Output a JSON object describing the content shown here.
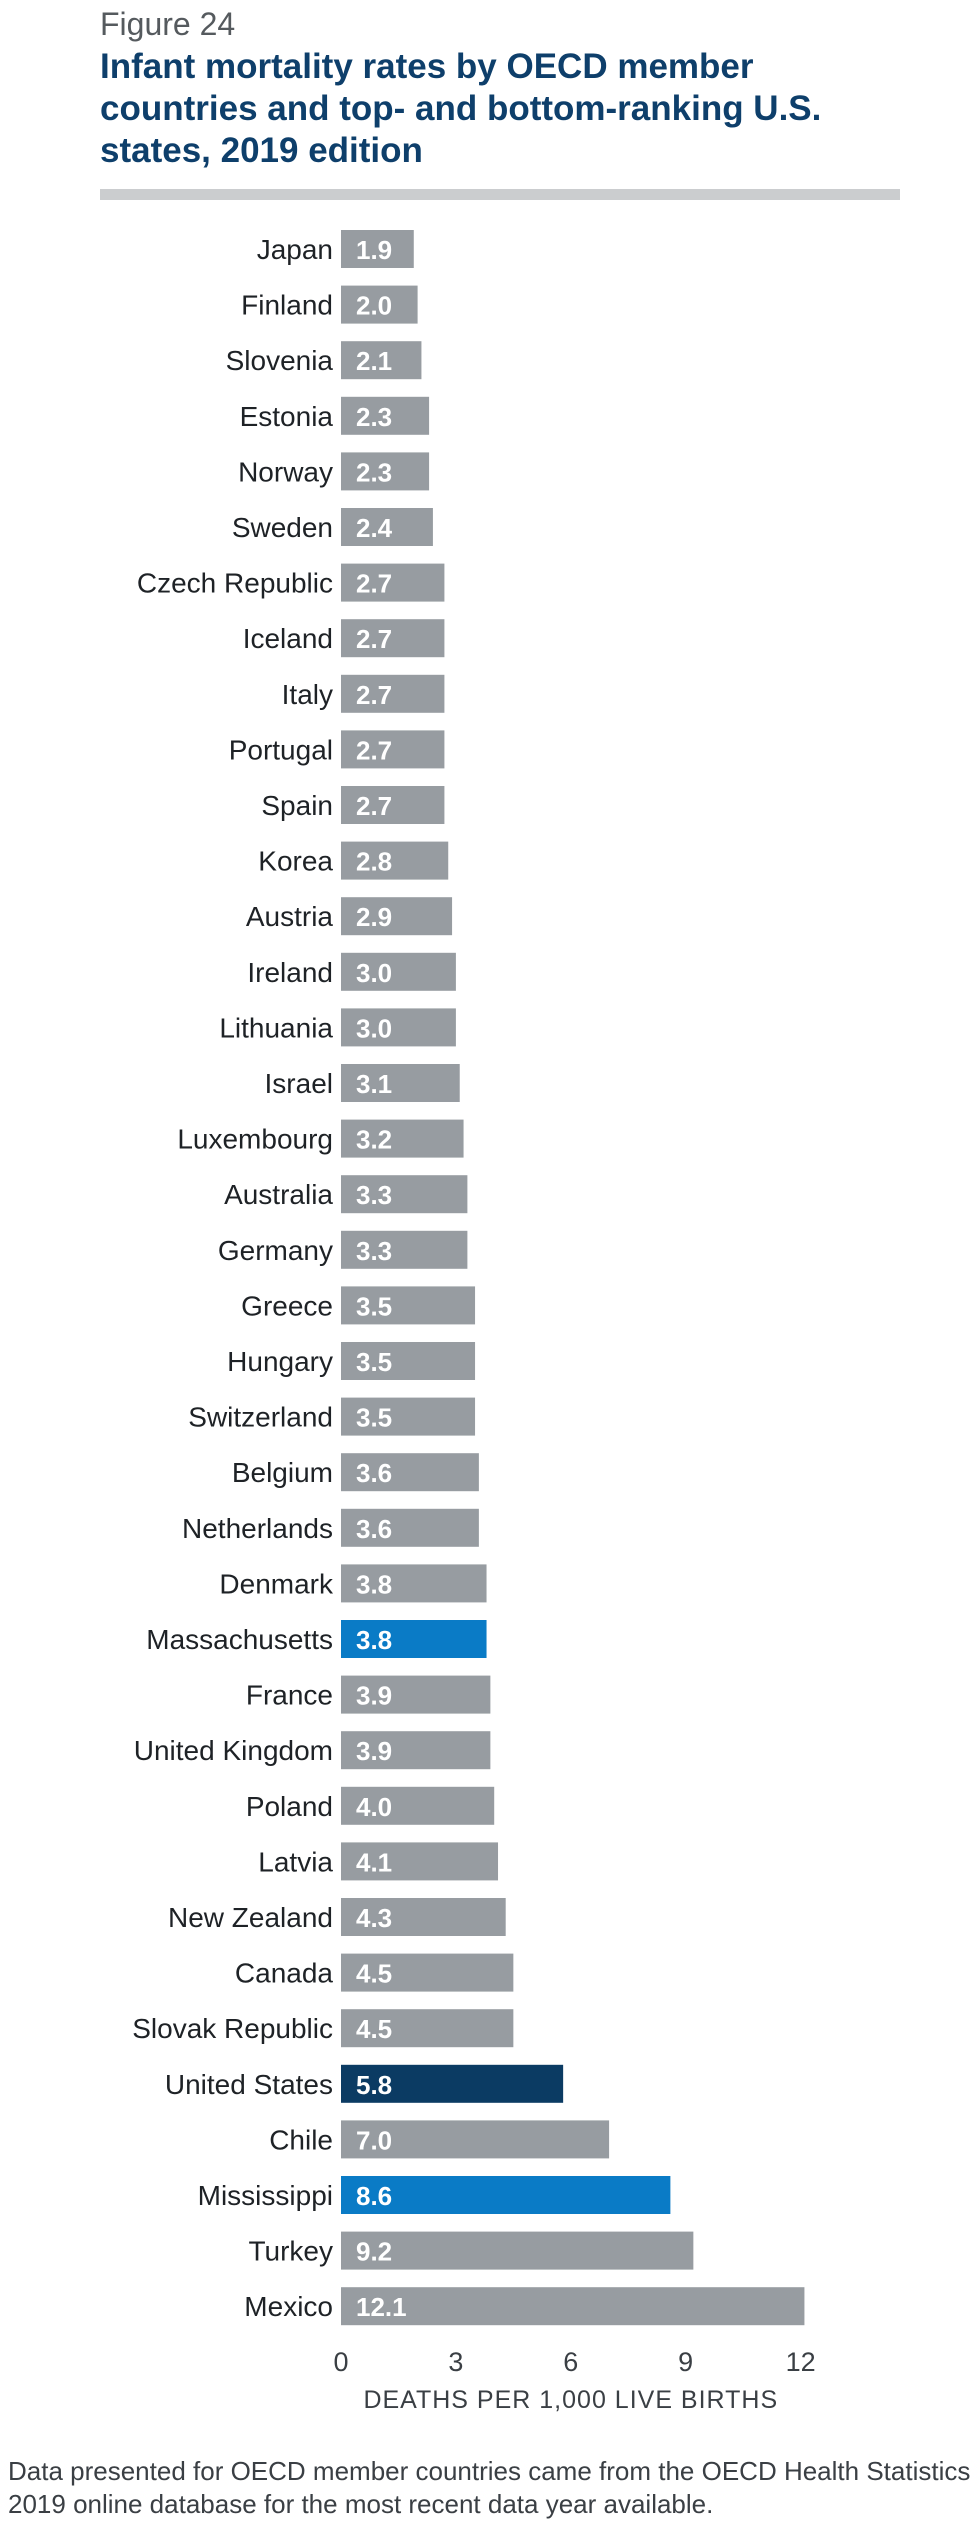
{
  "figure_label": "Figure 24",
  "title": "Infant mortality rates by OECD member countries and top- and bottom-ranking U.S. states, 2019 edition",
  "footnote": "Data presented for OECD member countries came from the OECD Health Statistics 2019 online database for the most recent data year available.",
  "colors": {
    "default_bar": "#979ca1",
    "state_bar": "#0a7bc6",
    "us_bar": "#0b3b63",
    "value_text": "#ffffff",
    "label_text": "#1e2226"
  },
  "chart_data": {
    "type": "bar",
    "orientation": "horizontal",
    "title": "Infant mortality rates by OECD member countries and top- and bottom-ranking U.S. states, 2019 edition",
    "xlabel": "DEATHS PER 1,000 LIVE BIRTHS",
    "ylabel": "",
    "xlim": [
      0,
      12
    ],
    "xticks": [
      0,
      3,
      6,
      9,
      12
    ],
    "grid": false,
    "legend": "none",
    "categories": [
      "Japan",
      "Finland",
      "Slovenia",
      "Estonia",
      "Norway",
      "Sweden",
      "Czech Republic",
      "Iceland",
      "Italy",
      "Portugal",
      "Spain",
      "Korea",
      "Austria",
      "Ireland",
      "Lithuania",
      "Israel",
      "Luxembourg",
      "Australia",
      "Germany",
      "Greece",
      "Hungary",
      "Switzerland",
      "Belgium",
      "Netherlands",
      "Denmark",
      "Massachusetts",
      "France",
      "United Kingdom",
      "Poland",
      "Latvia",
      "New Zealand",
      "Canada",
      "Slovak Republic",
      "United States",
      "Chile",
      "Mississippi",
      "Turkey",
      "Mexico"
    ],
    "values": [
      1.9,
      2.0,
      2.1,
      2.3,
      2.3,
      2.4,
      2.7,
      2.7,
      2.7,
      2.7,
      2.7,
      2.8,
      2.9,
      3.0,
      3.0,
      3.1,
      3.2,
      3.3,
      3.3,
      3.5,
      3.5,
      3.5,
      3.6,
      3.6,
      3.8,
      3.8,
      3.9,
      3.9,
      4.0,
      4.1,
      4.3,
      4.5,
      4.5,
      5.8,
      7.0,
      8.6,
      9.2,
      12.1
    ],
    "value_labels": [
      "1.9",
      "2.0",
      "2.1",
      "2.3",
      "2.3",
      "2.4",
      "2.7",
      "2.7",
      "2.7",
      "2.7",
      "2.7",
      "2.8",
      "2.9",
      "3.0",
      "3.0",
      "3.1",
      "3.2",
      "3.3",
      "3.3",
      "3.5",
      "3.5",
      "3.5",
      "3.6",
      "3.6",
      "3.8",
      "3.8",
      "3.9",
      "3.9",
      "4.0",
      "4.1",
      "4.3",
      "4.5",
      "4.5",
      "5.8",
      "7.0",
      "8.6",
      "9.2",
      "12.1"
    ],
    "highlight": {
      "Massachusetts": "state_bar",
      "Mississippi": "state_bar",
      "United States": "us_bar"
    }
  }
}
